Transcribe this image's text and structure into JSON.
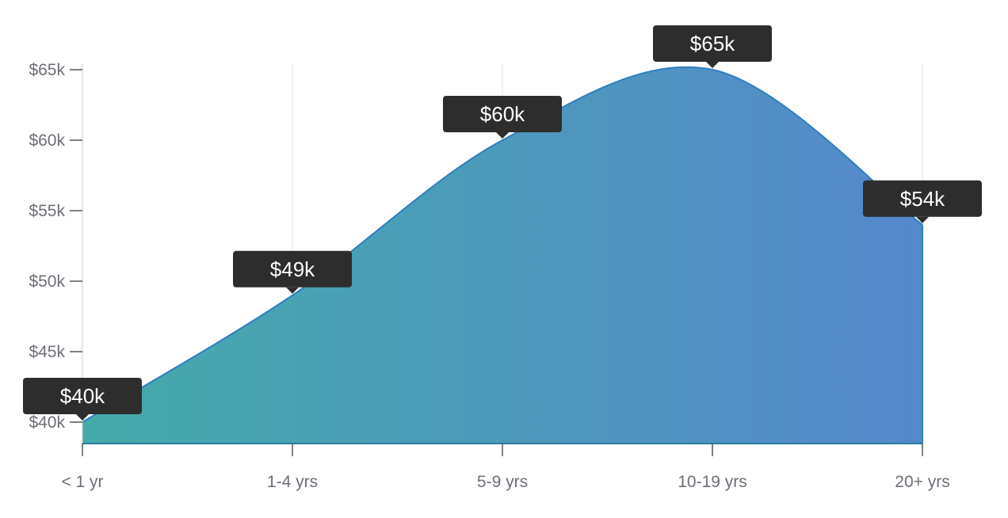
{
  "chart_data": {
    "type": "area",
    "categories": [
      "< 1 yr",
      "1-4 yrs",
      "5-9 yrs",
      "10-19 yrs",
      "20+ yrs"
    ],
    "series": [
      {
        "values": [
          40,
          49,
          60,
          65,
          54
        ],
        "labels": [
          "$40k",
          "$49k",
          "$60k",
          "$65k",
          "$54k"
        ]
      }
    ],
    "yticks": [
      40,
      45,
      50,
      55,
      60,
      65
    ],
    "ytick_labels": [
      "$40k",
      "$45k",
      "$50k",
      "$55k",
      "$60k",
      "$65k"
    ],
    "ylim": [
      38.5,
      65
    ],
    "grid": "vertical",
    "colors": {
      "gradient_start": "#44aaaa",
      "gradient_end": "#5588cc",
      "line": "#2f7fc0",
      "axis": "#555555",
      "grid": "#e3e3e3",
      "label_bg": "#2d2d2d",
      "label_text": "#ffffff",
      "tick_text": "#6e6e78"
    }
  }
}
